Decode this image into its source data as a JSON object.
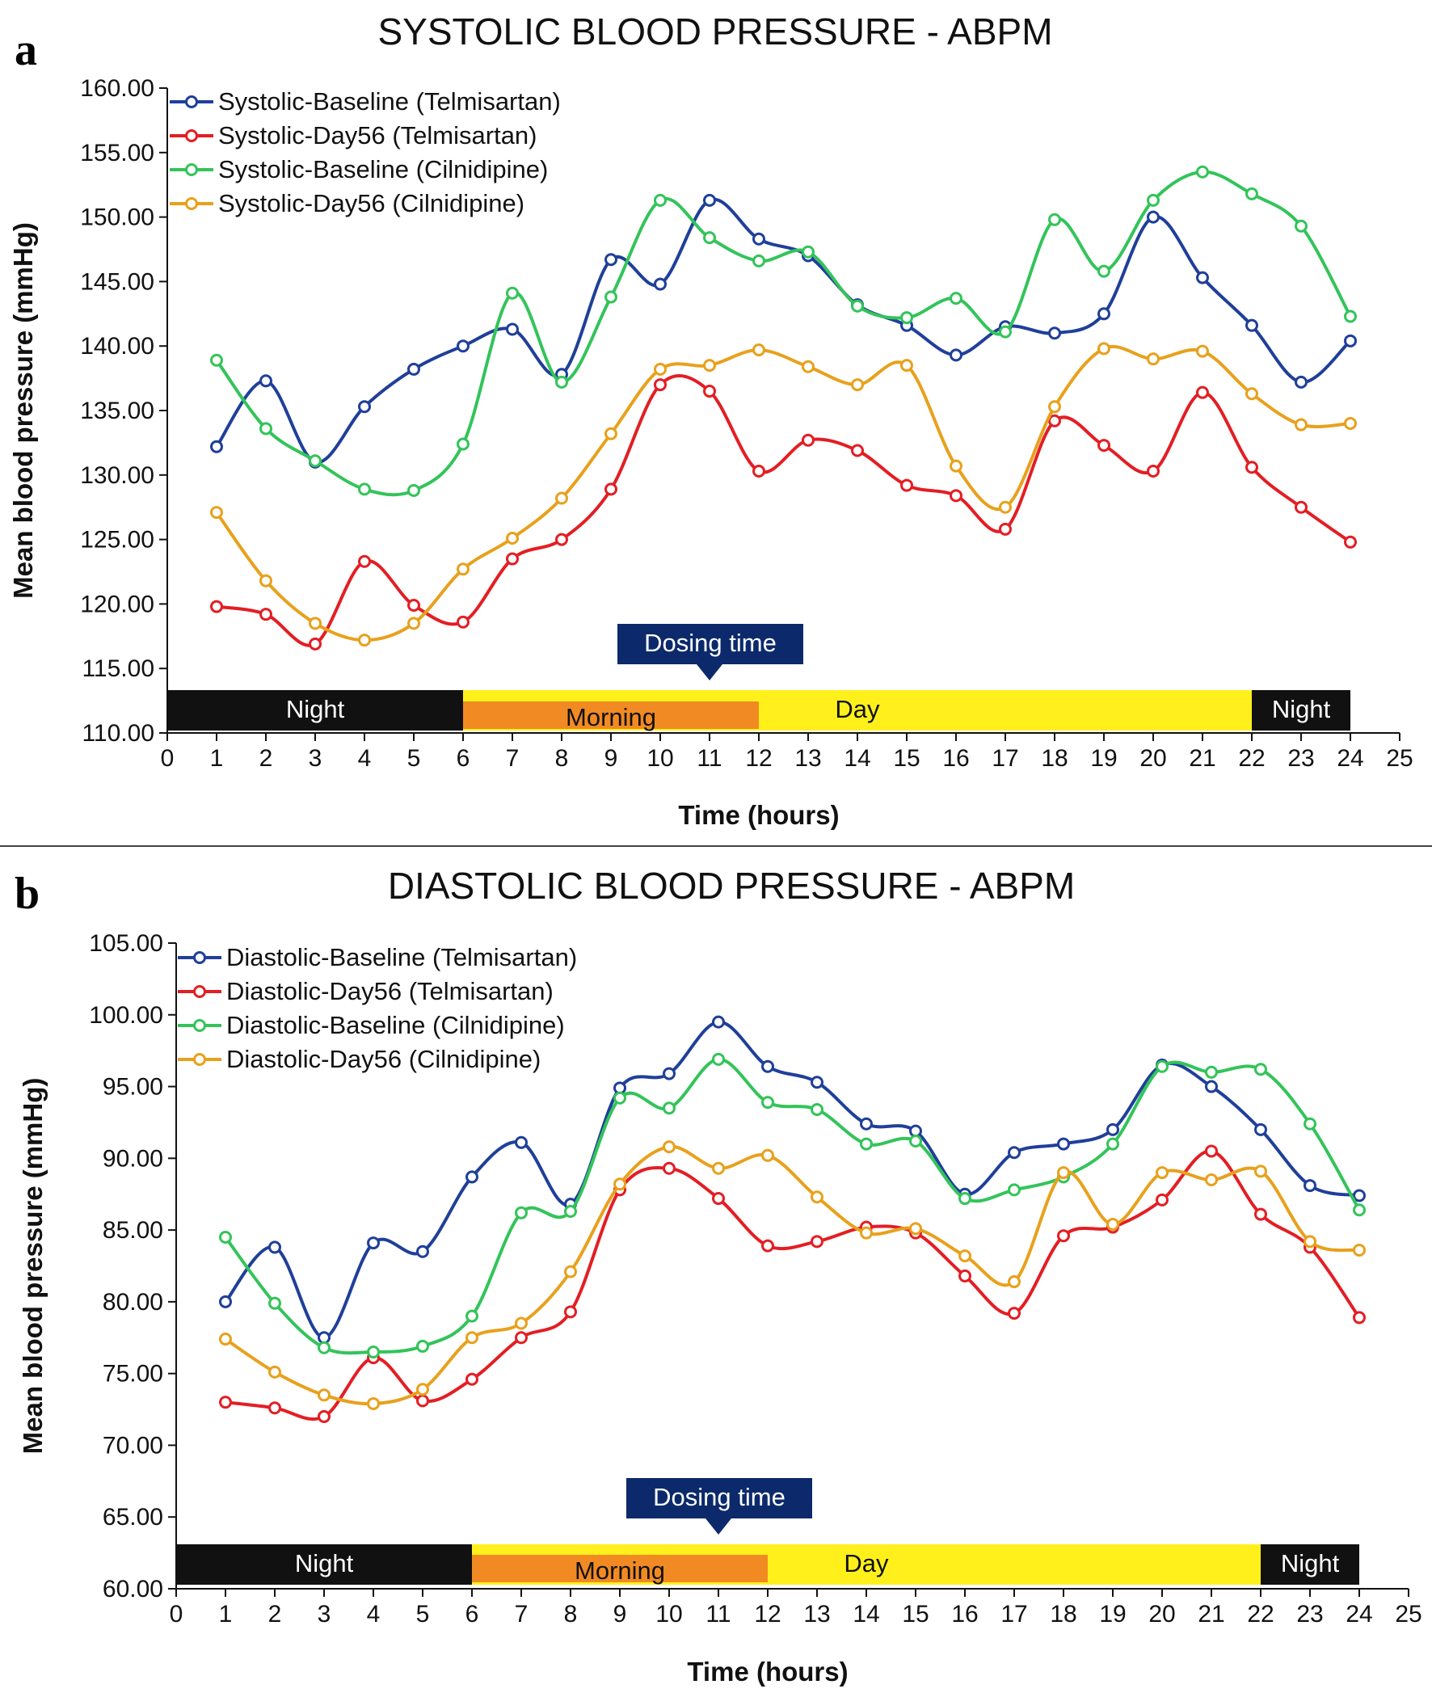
{
  "chart_data": [
    {
      "panel": "a",
      "type": "line",
      "title": "SYSTOLIC BLOOD PRESSURE - ABPM",
      "xlabel": "Time (hours)",
      "ylabel": "Mean blood pressure (mmHg)",
      "xlim": [
        0,
        25
      ],
      "ylim": [
        110,
        160
      ],
      "xticks": [
        "0",
        "1",
        "2",
        "3",
        "4",
        "5",
        "6",
        "7",
        "8",
        "9",
        "10",
        "11",
        "12",
        "13",
        "14",
        "15",
        "16",
        "17",
        "18",
        "19",
        "20",
        "21",
        "22",
        "23",
        "24",
        "25"
      ],
      "yticks": [
        "110.00",
        "115.00",
        "120.00",
        "125.00",
        "130.00",
        "135.00",
        "140.00",
        "145.00",
        "150.00",
        "155.00",
        "160.00"
      ],
      "grid": false,
      "legend_position": "top-left",
      "x": [
        1,
        2,
        3,
        4,
        5,
        6,
        7,
        8,
        9,
        10,
        11,
        12,
        13,
        14,
        15,
        16,
        17,
        18,
        19,
        20,
        21,
        22,
        23,
        24
      ],
      "series": [
        {
          "name": "Systolic-Baseline (Telmisartan)",
          "color": "#1f3f99",
          "values": [
            132.2,
            137.3,
            131.0,
            135.3,
            138.2,
            140.0,
            141.3,
            137.8,
            146.7,
            144.8,
            151.3,
            148.3,
            147.0,
            143.2,
            141.6,
            139.3,
            141.5,
            141.0,
            142.5,
            150.0,
            145.3,
            141.6,
            137.2,
            140.4
          ]
        },
        {
          "name": "Systolic-Day56 (Telmisartan)",
          "color": "#e31e24",
          "values": [
            119.8,
            119.2,
            116.9,
            123.3,
            119.9,
            118.6,
            123.5,
            125.0,
            128.9,
            137.0,
            136.5,
            130.3,
            132.7,
            131.9,
            129.2,
            128.4,
            125.8,
            134.2,
            132.3,
            130.3,
            136.4,
            130.6,
            127.5,
            124.8
          ]
        },
        {
          "name": "Systolic-Baseline (Cilnidipine)",
          "color": "#33c45a",
          "values": [
            138.9,
            133.6,
            131.1,
            128.9,
            128.8,
            132.4,
            144.1,
            137.2,
            143.8,
            151.3,
            148.4,
            146.6,
            147.3,
            143.1,
            142.2,
            143.7,
            141.1,
            149.8,
            145.8,
            151.3,
            153.5,
            151.8,
            149.3,
            142.3
          ]
        },
        {
          "name": "Systolic-Day56 (Cilnidipine)",
          "color": "#e8a11c",
          "values": [
            127.1,
            121.8,
            118.5,
            117.2,
            118.5,
            122.7,
            125.1,
            128.2,
            133.2,
            138.2,
            138.5,
            139.7,
            138.4,
            137.0,
            138.5,
            130.7,
            127.5,
            135.3,
            139.8,
            139.0,
            139.6,
            136.3,
            133.9,
            134.0
          ]
        }
      ],
      "annotation": "Dosing time",
      "annotation_x": 11,
      "bands": [
        {
          "label": "Night",
          "from": 0,
          "to": 6,
          "fill": "#111111",
          "text_color": "#ffffff"
        },
        {
          "label": "Day",
          "from": 6,
          "to": 22,
          "fill": "#fff01c",
          "text_color": "#111111"
        },
        {
          "label": "Night",
          "from": 22,
          "to": 24,
          "fill": "#111111",
          "text_color": "#ffffff"
        }
      ],
      "subband": {
        "label": "Morning",
        "from": 6,
        "to": 12,
        "fill": "#f28a23",
        "text_color": "#111111"
      }
    },
    {
      "panel": "b",
      "type": "line",
      "title": "DIASTOLIC BLOOD PRESSURE - ABPM",
      "xlabel": "Time (hours)",
      "ylabel": "Mean blood pressure (mmHg)",
      "xlim": [
        0,
        25
      ],
      "ylim": [
        60,
        105
      ],
      "xticks": [
        "0",
        "1",
        "2",
        "3",
        "4",
        "5",
        "6",
        "7",
        "8",
        "9",
        "10",
        "11",
        "12",
        "13",
        "14",
        "15",
        "16",
        "17",
        "18",
        "19",
        "20",
        "21",
        "22",
        "23",
        "24",
        "25"
      ],
      "yticks": [
        "60.00",
        "65.00",
        "70.00",
        "75.00",
        "80.00",
        "85.00",
        "90.00",
        "95.00",
        "100.00",
        "105.00"
      ],
      "grid": false,
      "legend_position": "top-left",
      "x": [
        1,
        2,
        3,
        4,
        5,
        6,
        7,
        8,
        9,
        10,
        11,
        12,
        13,
        14,
        15,
        16,
        17,
        18,
        19,
        20,
        21,
        22,
        23,
        24
      ],
      "series": [
        {
          "name": "Diastolic-Baseline (Telmisartan)",
          "color": "#1f3f99",
          "values": [
            80.0,
            83.8,
            77.5,
            84.1,
            83.5,
            88.7,
            91.1,
            86.8,
            94.9,
            95.9,
            99.5,
            96.4,
            95.3,
            92.4,
            91.9,
            87.5,
            90.4,
            91.0,
            92.0,
            96.5,
            95.0,
            92.0,
            88.1,
            87.4
          ]
        },
        {
          "name": "Diastolic-Day56 (Telmisartan)",
          "color": "#e31e24",
          "values": [
            73.0,
            72.6,
            72.0,
            76.1,
            73.1,
            74.6,
            77.5,
            79.3,
            87.8,
            89.3,
            87.2,
            83.9,
            84.2,
            85.2,
            84.8,
            81.8,
            79.2,
            84.6,
            85.2,
            87.1,
            90.5,
            86.1,
            83.8,
            78.9
          ]
        },
        {
          "name": "Diastolic-Baseline (Cilnidipine)",
          "color": "#33c45a",
          "values": [
            84.5,
            79.9,
            76.8,
            76.5,
            76.9,
            79.0,
            86.2,
            86.3,
            94.2,
            93.5,
            96.9,
            93.9,
            93.4,
            91.0,
            91.2,
            87.2,
            87.8,
            88.7,
            91.0,
            96.4,
            96.0,
            96.2,
            92.4,
            86.4
          ]
        },
        {
          "name": "Diastolic-Day56 (Cilnidipine)",
          "color": "#e8a11c",
          "values": [
            77.4,
            75.1,
            73.5,
            72.9,
            73.9,
            77.5,
            78.5,
            82.1,
            88.2,
            90.8,
            89.3,
            90.2,
            87.3,
            84.8,
            85.1,
            83.2,
            81.4,
            89.0,
            85.4,
            89.0,
            88.5,
            89.1,
            84.2,
            83.6
          ]
        }
      ],
      "annotation": "Dosing time",
      "annotation_x": 11,
      "bands": [
        {
          "label": "Night",
          "from": 0,
          "to": 6,
          "fill": "#111111",
          "text_color": "#ffffff"
        },
        {
          "label": "Day",
          "from": 6,
          "to": 22,
          "fill": "#fff01c",
          "text_color": "#111111"
        },
        {
          "label": "Night",
          "from": 22,
          "to": 24,
          "fill": "#111111",
          "text_color": "#ffffff"
        }
      ],
      "subband": {
        "label": "Morning",
        "from": 6,
        "to": 12,
        "fill": "#f28a23",
        "text_color": "#111111"
      }
    }
  ]
}
